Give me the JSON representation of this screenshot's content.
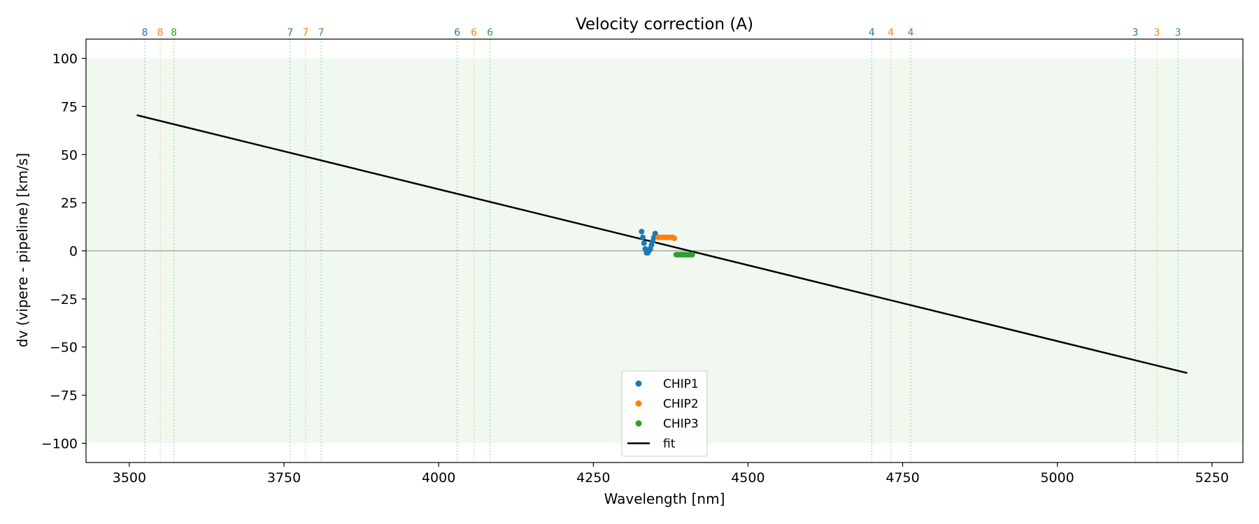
{
  "chart_data": {
    "type": "scatter",
    "title": "Velocity correction (A)",
    "xlabel": "Wavelength [nm]",
    "ylabel": "dv (vipere - pipeline) [km/s]",
    "xlim": [
      3430,
      5300
    ],
    "ylim": [
      -110,
      110
    ],
    "xticks": [
      3500,
      3750,
      4000,
      4250,
      4500,
      4750,
      5000,
      5250
    ],
    "yticks": [
      -100,
      -75,
      -50,
      -25,
      0,
      25,
      50,
      75,
      100
    ],
    "ytick_labels": [
      "−100",
      "−75",
      "−50",
      "−25",
      "0",
      "25",
      "50",
      "75",
      "100"
    ],
    "shaded_band": {
      "y0": -100,
      "y1": 100,
      "color": "#2ca02c"
    },
    "zero_line": {
      "y": 0,
      "color": "#808080"
    },
    "colors": {
      "CHIP1": "#1f77b4",
      "CHIP2": "#ff7f0e",
      "CHIP3": "#2ca02c",
      "fit": "#000000"
    },
    "order_markers": [
      {
        "wavelength": 3525,
        "label": "8",
        "chip": "CHIP1"
      },
      {
        "wavelength": 3550,
        "label": "8",
        "chip": "CHIP2"
      },
      {
        "wavelength": 3572,
        "label": "8",
        "chip": "CHIP3"
      },
      {
        "wavelength": 3760,
        "label": "7",
        "chip": "CHIP1"
      },
      {
        "wavelength": 3785,
        "label": "7",
        "chip": "CHIP2"
      },
      {
        "wavelength": 3810,
        "label": "7",
        "chip": "CHIP3"
      },
      {
        "wavelength": 4030,
        "label": "6",
        "chip": "CHIP1"
      },
      {
        "wavelength": 4057,
        "label": "6",
        "chip": "CHIP2"
      },
      {
        "wavelength": 4083,
        "label": "6",
        "chip": "CHIP3"
      },
      {
        "wavelength": 4700,
        "label": "4",
        "chip": "CHIP1"
      },
      {
        "wavelength": 4731,
        "label": "4",
        "chip": "CHIP2"
      },
      {
        "wavelength": 4763,
        "label": "4",
        "chip": "CHIP3"
      },
      {
        "wavelength": 5126,
        "label": "3",
        "chip": "CHIP1"
      },
      {
        "wavelength": 5161,
        "label": "3",
        "chip": "CHIP2"
      },
      {
        "wavelength": 5195,
        "label": "3",
        "chip": "CHIP3"
      }
    ],
    "series": [
      {
        "name": "CHIP1",
        "points": [
          [
            4328,
            10
          ],
          [
            4330,
            7
          ],
          [
            4332,
            4
          ],
          [
            4334,
            1
          ],
          [
            4336,
            -1
          ],
          [
            4338,
            -1
          ],
          [
            4340,
            0
          ],
          [
            4342,
            1
          ],
          [
            4344,
            3
          ],
          [
            4346,
            5
          ],
          [
            4348,
            7
          ],
          [
            4350,
            9
          ]
        ]
      },
      {
        "name": "CHIP2",
        "points": [
          [
            4355,
            7
          ],
          [
            4358,
            7
          ],
          [
            4361,
            7
          ],
          [
            4364,
            7
          ],
          [
            4367,
            7
          ],
          [
            4370,
            7
          ],
          [
            4373,
            7
          ],
          [
            4376,
            7
          ],
          [
            4379,
            7
          ],
          [
            4381,
            6.5
          ]
        ]
      },
      {
        "name": "CHIP3",
        "points": [
          [
            4384,
            -2
          ],
          [
            4387,
            -2
          ],
          [
            4390,
            -2
          ],
          [
            4393,
            -2
          ],
          [
            4396,
            -2
          ],
          [
            4399,
            -2
          ],
          [
            4402,
            -2
          ],
          [
            4405,
            -2
          ],
          [
            4408,
            -2
          ],
          [
            4410,
            -2
          ]
        ]
      }
    ],
    "fit": {
      "name": "fit",
      "x": [
        3512,
        5210
      ],
      "y": [
        70.5,
        -63.5
      ]
    },
    "legend": {
      "position": "bottom-center",
      "entries": [
        "CHIP1",
        "CHIP2",
        "CHIP3",
        "fit"
      ]
    }
  }
}
